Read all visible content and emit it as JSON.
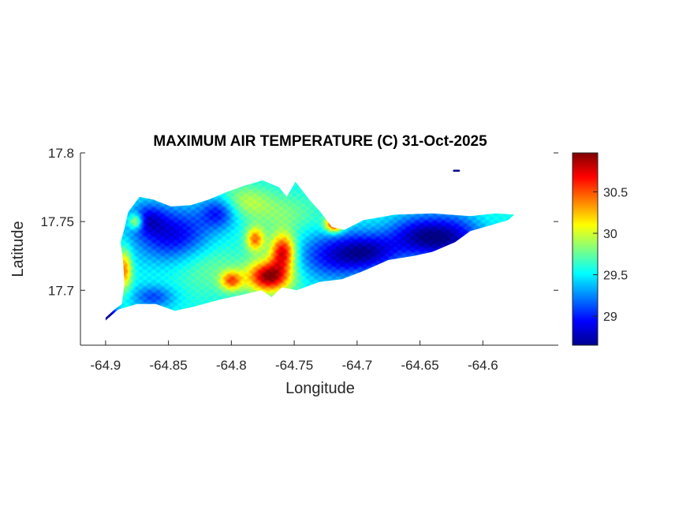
{
  "chart_data": {
    "type": "heatmap",
    "title": "MAXIMUM AIR TEMPERATURE (C) 31-Oct-2025",
    "xlabel": "Longitude",
    "ylabel": "Latitude",
    "xlim": [
      -64.92,
      -64.54
    ],
    "ylim": [
      17.66,
      17.8
    ],
    "xticks": [
      "-64.9",
      "-64.85",
      "-64.8",
      "-64.75",
      "-64.7",
      "-64.65",
      "-64.6"
    ],
    "yticks": [
      "17.7",
      "17.75",
      "17.8"
    ],
    "colormap": "jet",
    "colorbar": {
      "range": [
        28.65,
        30.97
      ],
      "ticks": [
        "29",
        "29.5",
        "30",
        "30.5"
      ]
    },
    "grid": false,
    "land_outline": [
      [
        -64.9,
        17.68
      ],
      [
        -64.893,
        17.686
      ],
      [
        -64.887,
        17.69
      ],
      [
        -64.885,
        17.705
      ],
      [
        -64.886,
        17.72
      ],
      [
        -64.888,
        17.735
      ],
      [
        -64.885,
        17.745
      ],
      [
        -64.882,
        17.757
      ],
      [
        -64.873,
        17.768
      ],
      [
        -64.862,
        17.766
      ],
      [
        -64.848,
        17.761
      ],
      [
        -64.832,
        17.762
      ],
      [
        -64.818,
        17.766
      ],
      [
        -64.805,
        17.771
      ],
      [
        -64.79,
        17.776
      ],
      [
        -64.775,
        17.78
      ],
      [
        -64.762,
        17.775
      ],
      [
        -64.756,
        17.768
      ],
      [
        -64.749,
        17.779
      ],
      [
        -64.738,
        17.766
      ],
      [
        -64.73,
        17.758
      ],
      [
        -64.72,
        17.746
      ],
      [
        -64.71,
        17.744
      ],
      [
        -64.695,
        17.751
      ],
      [
        -64.67,
        17.755
      ],
      [
        -64.64,
        17.756
      ],
      [
        -64.61,
        17.754
      ],
      [
        -64.59,
        17.756
      ],
      [
        -64.575,
        17.755
      ],
      [
        -64.58,
        17.751
      ],
      [
        -64.595,
        17.747
      ],
      [
        -64.61,
        17.743
      ],
      [
        -64.622,
        17.735
      ],
      [
        -64.64,
        17.728
      ],
      [
        -64.655,
        17.725
      ],
      [
        -64.675,
        17.722
      ],
      [
        -64.695,
        17.714
      ],
      [
        -64.712,
        17.708
      ],
      [
        -64.73,
        17.706
      ],
      [
        -64.748,
        17.7
      ],
      [
        -64.76,
        17.702
      ],
      [
        -64.768,
        17.695
      ],
      [
        -64.776,
        17.7
      ],
      [
        -64.79,
        17.697
      ],
      [
        -64.81,
        17.693
      ],
      [
        -64.83,
        17.688
      ],
      [
        -64.845,
        17.685
      ],
      [
        -64.86,
        17.69
      ],
      [
        -64.875,
        17.69
      ],
      [
        -64.89,
        17.686
      ],
      [
        -64.9,
        17.678
      ]
    ],
    "islet": [
      [
        -64.623,
        17.787
      ],
      [
        -64.619,
        17.787
      ]
    ],
    "temperature_field": [
      {
        "lon": -64.845,
        "lat": 17.74,
        "value": 28.85,
        "spread": [
          0.022,
          0.014
        ]
      },
      {
        "lon": -64.81,
        "lat": 17.757,
        "value": 29.0,
        "spread": [
          0.01,
          0.008
        ]
      },
      {
        "lon": -64.867,
        "lat": 17.752,
        "value": 29.1,
        "spread": [
          0.01,
          0.008
        ]
      },
      {
        "lon": -64.72,
        "lat": 17.725,
        "value": 29.0,
        "spread": [
          0.02,
          0.012
        ]
      },
      {
        "lon": -64.69,
        "lat": 17.728,
        "value": 28.9,
        "spread": [
          0.018,
          0.01
        ]
      },
      {
        "lon": -64.628,
        "lat": 17.738,
        "value": 28.8,
        "spread": [
          0.02,
          0.012
        ]
      },
      {
        "lon": -64.655,
        "lat": 17.74,
        "value": 29.1,
        "spread": [
          0.016,
          0.01
        ]
      },
      {
        "lon": -64.596,
        "lat": 17.752,
        "value": 29.6,
        "spread": [
          0.01,
          0.006
        ]
      },
      {
        "lon": -64.898,
        "lat": 17.681,
        "value": 28.7,
        "spread": [
          0.006,
          0.005
        ]
      },
      {
        "lon": -64.862,
        "lat": 17.695,
        "value": 29.1,
        "spread": [
          0.012,
          0.006
        ]
      },
      {
        "lon": -64.77,
        "lat": 17.71,
        "value": 30.95,
        "spread": [
          0.012,
          0.008
        ]
      },
      {
        "lon": -64.759,
        "lat": 17.728,
        "value": 30.75,
        "spread": [
          0.007,
          0.009
        ]
      },
      {
        "lon": -64.781,
        "lat": 17.737,
        "value": 30.4,
        "spread": [
          0.005,
          0.006
        ]
      },
      {
        "lon": -64.8,
        "lat": 17.707,
        "value": 30.4,
        "spread": [
          0.006,
          0.005
        ]
      },
      {
        "lon": -64.718,
        "lat": 17.748,
        "value": 30.8,
        "spread": [
          0.005,
          0.004
        ]
      },
      {
        "lon": -64.885,
        "lat": 17.715,
        "value": 30.4,
        "spread": [
          0.004,
          0.01
        ]
      },
      {
        "lon": -64.876,
        "lat": 17.75,
        "value": 30.3,
        "spread": [
          0.004,
          0.004
        ]
      },
      {
        "lon": -64.82,
        "lat": 17.72,
        "value": 29.8,
        "spread": [
          0.02,
          0.015
        ]
      },
      {
        "lon": -64.76,
        "lat": 17.755,
        "value": 29.8,
        "spread": [
          0.02,
          0.01
        ]
      },
      {
        "lon": -64.79,
        "lat": 17.765,
        "value": 29.9,
        "spread": [
          0.015,
          0.008
        ]
      }
    ]
  }
}
